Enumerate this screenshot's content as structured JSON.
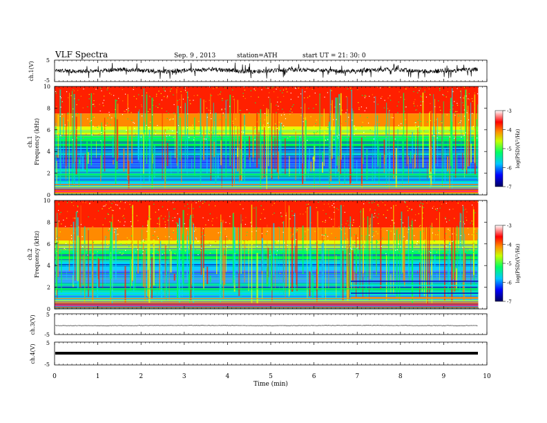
{
  "header": {
    "title": "VLF  Spectra",
    "date": "Sep. 9  , 2013",
    "station": "station=ATH",
    "start": "start  UT  =    21: 30: 0"
  },
  "chart_data": [
    {
      "type": "line",
      "panel": "ch1-waveform",
      "ylabel": "ch.1(V)",
      "yticks": [
        "5",
        "-5"
      ],
      "ylim": [
        -5,
        5
      ],
      "color": "#000000"
    },
    {
      "type": "heatmap",
      "panel": "ch1-spectrogram",
      "ylabel": "ch.1\nFrequency  (kHz)",
      "ylabel_lines": [
        "ch.1",
        "Frequency  (kHz)"
      ],
      "yticks": [
        "10",
        "8",
        "6",
        "4",
        "2",
        "0"
      ],
      "ylim": [
        0,
        10
      ],
      "xlim": [
        0,
        9.8
      ],
      "colorbar": {
        "label": "log(PSD)(V²/Hz)",
        "ticks": [
          "-3",
          "-4",
          "-5",
          "-6",
          "-7"
        ],
        "range": [
          -7,
          -3
        ],
        "colors": [
          "#000060",
          "#0000ff",
          "#00c8ff",
          "#00ff64",
          "#c8ff00",
          "#ff9000",
          "#ff0000",
          "#ffffff"
        ]
      },
      "dominant_levels": [
        {
          "freq_khz": [
            0,
            0.7
          ],
          "level": "high",
          "color": "#ff8000"
        },
        {
          "freq_khz": [
            0.7,
            2.5
          ],
          "level": "mid",
          "color": "#00e0c0"
        },
        {
          "freq_khz": [
            2.5,
            4.5
          ],
          "level": "low",
          "color": "#2040ff"
        },
        {
          "freq_khz": [
            4.5,
            7.5
          ],
          "level": "mid-high",
          "color": "#00ff40"
        },
        {
          "freq_khz": [
            7.5,
            10
          ],
          "level": "high",
          "color": "#ff2000"
        }
      ]
    },
    {
      "type": "heatmap",
      "panel": "ch2-spectrogram",
      "ylabel": "ch.2\nFrequency  (kHz)",
      "ylabel_lines": [
        "ch.2",
        "Frequency  (kHz)"
      ],
      "yticks": [
        "10",
        "8",
        "6",
        "4",
        "2",
        "0"
      ],
      "ylim": [
        0,
        10
      ],
      "xlim": [
        0,
        9.8
      ],
      "colorbar": {
        "label": "log(PSD)(V²/Hz)",
        "ticks": [
          "-3",
          "-4",
          "-5",
          "-6",
          "-7"
        ],
        "range": [
          -7,
          -3
        ]
      }
    },
    {
      "type": "line",
      "panel": "ch3-waveform",
      "ylabel": "ch.3(V)",
      "yticks": [
        "5",
        "-5"
      ],
      "ylim": [
        -5,
        5
      ]
    },
    {
      "type": "line",
      "panel": "ch4-waveform",
      "ylabel": "ch.4(V)",
      "yticks": [
        "5",
        "-5"
      ],
      "ylim": [
        -5,
        5
      ]
    }
  ],
  "xaxis": {
    "label": "Time  (min)",
    "ticks": [
      "0",
      "1",
      "2",
      "3",
      "4",
      "5",
      "6",
      "7",
      "8",
      "9",
      "10"
    ],
    "xlim": [
      0,
      10
    ]
  }
}
